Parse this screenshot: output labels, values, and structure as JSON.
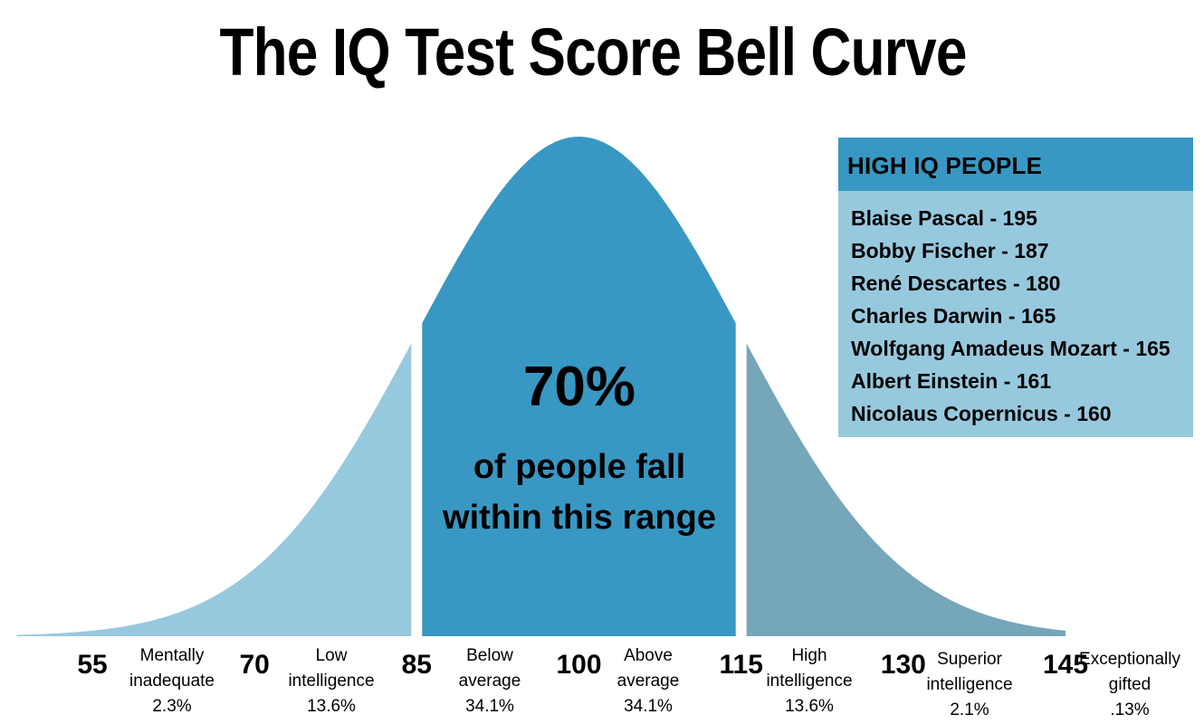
{
  "chart_data": {
    "type": "area",
    "title": "The IQ Test Score Bell Curve",
    "distribution": "normal",
    "mean": 100,
    "std_dev": 15,
    "xlim": [
      55,
      145
    ],
    "x_ticks": [
      "55",
      "70",
      "85",
      "100",
      "115",
      "130",
      "145"
    ],
    "segments": [
      {
        "label": "Mentally inadequate",
        "percent": "2.3%",
        "range": [
          55,
          70
        ]
      },
      {
        "label": "Low intelligence",
        "percent": "13.6%",
        "range": [
          70,
          85
        ]
      },
      {
        "label": "Below average",
        "percent": "34.1%",
        "range": [
          85,
          100
        ]
      },
      {
        "label": "Above average",
        "percent": "34.1%",
        "range": [
          100,
          115
        ]
      },
      {
        "label": "High intelligence",
        "percent": "13.6%",
        "range": [
          115,
          130
        ]
      },
      {
        "label": "Superior intelligence",
        "percent": "2.1%",
        "range": [
          130,
          145
        ]
      },
      {
        "label": "Exceptionally gifted",
        "percent": ".13%",
        "range": [
          145,
          null
        ]
      }
    ],
    "highlight": {
      "range": [
        85,
        115
      ],
      "value": "70%",
      "line1": "of people fall",
      "line2": "within this range"
    },
    "colors": {
      "left": "#97c9de",
      "center": "#3898c3",
      "right": "#76a6ba"
    }
  },
  "high_iq": {
    "title": "HIGH IQ PEOPLE",
    "people": [
      "Blaise Pascal - 195",
      "Bobby Fischer - 187",
      "René Descartes - 180",
      "Charles Darwin - 165",
      "Wolfgang Amadeus Mozart - 165",
      "Albert Einstein - 161",
      "Nicolaus Copernicus - 160"
    ]
  }
}
